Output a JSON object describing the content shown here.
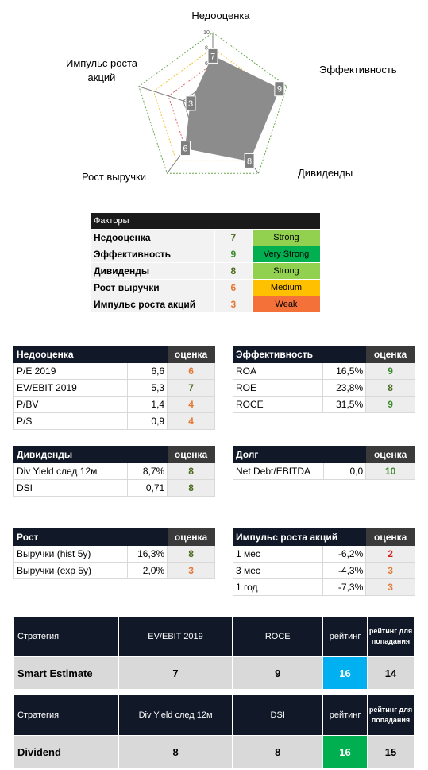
{
  "colors": {
    "strong": "#92d050",
    "very_strong": "#00b050",
    "medium": "#ffc000",
    "weak": "#f4713a",
    "green_text": "#3c8c2c",
    "dark_green_text": "#4a6b1e",
    "orange_text": "#e47833",
    "red_text": "#d81b1b",
    "radar_fill": "#8c8c8c",
    "rating_blue": "#00b0f0",
    "rating_green": "#00b050"
  },
  "radar": {
    "ticks": [
      "0",
      "2",
      "4",
      "6",
      "8",
      "10"
    ],
    "axes": [
      {
        "title": "Недооценка",
        "value": 7
      },
      {
        "title": "Эффективность",
        "value": 9
      },
      {
        "title": "Дивиденды",
        "value": 8
      },
      {
        "title": "Рост выручки",
        "value": 6
      },
      {
        "title": "Импульс роста акций",
        "value": 3
      }
    ]
  },
  "factors": {
    "header": "Факторы",
    "rows": [
      {
        "name": "Недооценка",
        "score": "7",
        "label": "Strong",
        "badge": "strong"
      },
      {
        "name": "Эффективность",
        "score": "9",
        "label": "Very Strong",
        "badge": "very_strong"
      },
      {
        "name": "Дивиденды",
        "score": "8",
        "label": "Strong",
        "badge": "strong"
      },
      {
        "name": "Рост выручки",
        "score": "6",
        "label": "Medium",
        "badge": "medium"
      },
      {
        "name": "Импульс роста акций",
        "score": "3",
        "label": "Weak",
        "badge": "weak"
      }
    ]
  },
  "score_header": "оценка",
  "valuation": {
    "title": "Недооценка",
    "rows": [
      {
        "name": "P/E 2019",
        "value": "6,6",
        "score": "6"
      },
      {
        "name": "EV/EBIT 2019",
        "value": "5,3",
        "score": "7"
      },
      {
        "name": "P/BV",
        "value": "1,4",
        "score": "4"
      },
      {
        "name": "P/S",
        "value": "0,9",
        "score": "4"
      }
    ]
  },
  "efficiency": {
    "title": "Эффективность",
    "rows": [
      {
        "name": "ROA",
        "value": "16,5%",
        "score": "9"
      },
      {
        "name": "ROE",
        "value": "23,8%",
        "score": "8"
      },
      {
        "name": "ROCE",
        "value": "31,5%",
        "score": "9"
      }
    ]
  },
  "dividends": {
    "title": "Дивиденды",
    "rows": [
      {
        "name": "Div Yield след 12м",
        "value": "8,7%",
        "score": "8"
      },
      {
        "name": "DSI",
        "value": "0,71",
        "score": "8"
      }
    ]
  },
  "debt": {
    "title": "Долг",
    "rows": [
      {
        "name": "Net Debt/EBITDA",
        "value": "0,0",
        "score": "10"
      }
    ]
  },
  "growth": {
    "title": "Рост",
    "rows": [
      {
        "name": "Выручки (hist 5y)",
        "value": "16,3%",
        "score": "8"
      },
      {
        "name": "Выручки (exp 5y)",
        "value": "2,0%",
        "score": "3"
      }
    ]
  },
  "momentum": {
    "title": "Импульс роста акций",
    "rows": [
      {
        "name": "1 мес",
        "value": "-6,2%",
        "score": "2"
      },
      {
        "name": "3 мес",
        "value": "-4,3%",
        "score": "3"
      },
      {
        "name": "1 год",
        "value": "-7,3%",
        "score": "3"
      }
    ]
  },
  "strategy1": {
    "col_strategy": "Стратегия",
    "col_a": "EV/EBIT 2019",
    "col_b": "ROCE",
    "col_rating": "рейтинг",
    "col_threshold": "рейтинг для попадания",
    "name": "Smart Estimate",
    "a": "7",
    "b": "9",
    "rating": "16",
    "threshold": "14"
  },
  "strategy2": {
    "col_strategy": "Стратегия",
    "col_a": "Div Yield след 12м",
    "col_b": "DSI",
    "col_rating": "рейтинг",
    "col_threshold": "рейтинг для попадания",
    "name": "Dividend",
    "a": "8",
    "b": "8",
    "rating": "16",
    "threshold": "15"
  }
}
